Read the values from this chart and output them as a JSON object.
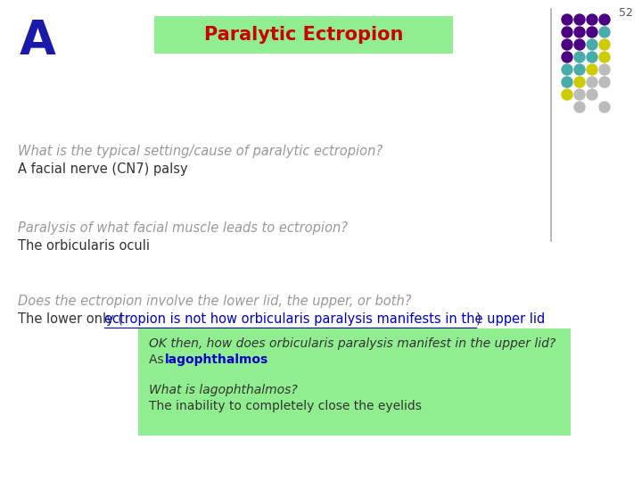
{
  "slide_number": "52",
  "title": "Paralytic Ectropion",
  "title_bg": "#90EE90",
  "title_color": "#CC0000",
  "letter_A": "A",
  "letter_A_color": "#1a1aaa",
  "q1_italic": "What is the typical setting/cause of paralytic ectropion?",
  "a1": "A facial nerve (CN7) palsy",
  "q2_italic": "Paralysis of what facial muscle leads to ectropion?",
  "a2": "The orbicularis oculi",
  "q3_italic": "Does the ectropion involve the lower lid, the upper, or both?",
  "a3_plain": "The lower only (",
  "a3_link": "ectropion is not how orbicularis paralysis manifests in the upper lid",
  "a3_close": ")",
  "box_bg": "#90EE90",
  "box_q1_italic": "OK then, how does orbicularis paralysis manifest in the upper lid?",
  "box_a1_plain": "As ",
  "box_a1_bold": "lagophthalmos",
  "box_q2_italic": "What is lagophthalmos?",
  "box_a2": "The inability to completely close the eyelids",
  "text_gray": "#999999",
  "text_dark": "#333333",
  "link_color": "#0000CC",
  "dot_colors": {
    "purple": "#4B0082",
    "teal": "#4AABAB",
    "yellow": "#CCCC00",
    "gray": "#BBBBBB"
  },
  "dot_pattern": [
    [
      "purple",
      "purple",
      "purple",
      "purple"
    ],
    [
      "purple",
      "purple",
      "purple",
      "teal"
    ],
    [
      "purple",
      "purple",
      "teal",
      "yellow"
    ],
    [
      "purple",
      "teal",
      "teal",
      "yellow"
    ],
    [
      "teal",
      "teal",
      "yellow",
      "gray"
    ],
    [
      "teal",
      "yellow",
      "gray",
      "gray"
    ],
    [
      "yellow",
      "gray",
      "gray",
      ""
    ],
    [
      "",
      "gray",
      "",
      "gray"
    ]
  ]
}
